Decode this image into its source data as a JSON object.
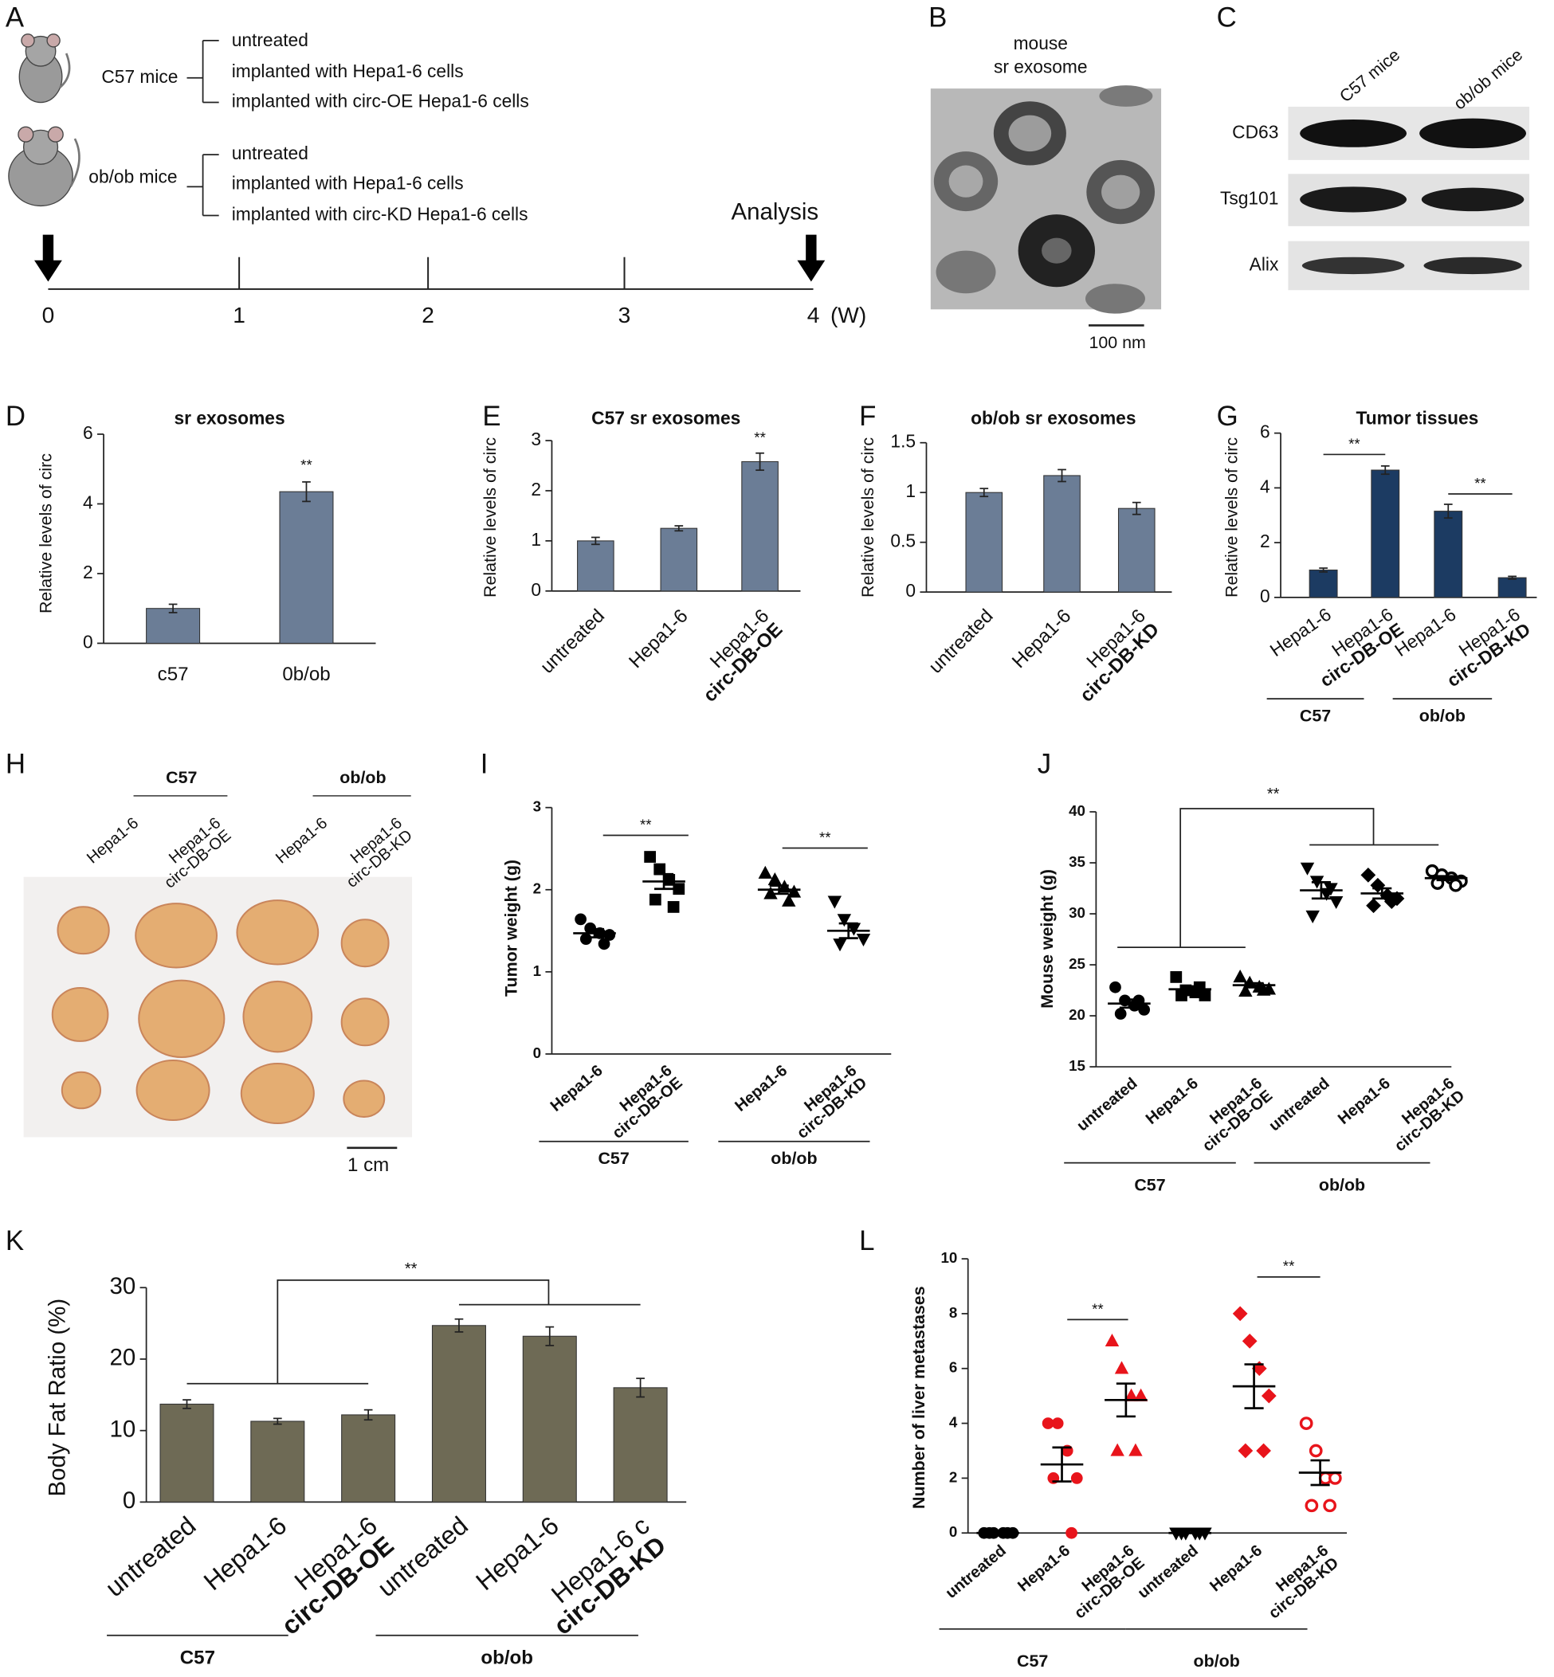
{
  "panel_a": {
    "label": "A",
    "groups": [
      {
        "name": "C57 mice",
        "items": [
          "untreated",
          "implanted with Hepa1-6 cells",
          "implanted with circ-OE Hepa1-6 cells"
        ]
      },
      {
        "name": "ob/ob mice",
        "items": [
          "untreated",
          "implanted with Hepa1-6 cells",
          "implanted with circ-KD Hepa1-6 cells"
        ]
      }
    ],
    "endpoint": "Analysis",
    "timeline": [
      0,
      1,
      2,
      3,
      4
    ],
    "unit": "(W)"
  },
  "panel_b": {
    "label": "B",
    "title": [
      "mouse",
      "sr exosome"
    ],
    "scale": "100 nm"
  },
  "panel_c": {
    "label": "C",
    "columns": [
      "C57 mice",
      "ob/ob mice"
    ],
    "rows": [
      "CD63",
      "Tsg101",
      "Alix"
    ]
  },
  "panel_h": {
    "label": "H",
    "groups": [
      "C57",
      "ob/ob"
    ],
    "samples": [
      "Hepa1-6",
      [
        "Hepa1-6",
        "circ-DB-OE"
      ],
      "Hepa1-6",
      [
        "Hepa1-6",
        "circ-DB-KD"
      ]
    ],
    "scale": "1 cm"
  },
  "chart_data": [
    {
      "type": "bar",
      "panel": "D",
      "title": "sr exosomes",
      "ylabel": "Relative levels of circ",
      "categories": [
        "c57",
        "0b/ob"
      ],
      "values": [
        1.0,
        4.35
      ],
      "errors": [
        0.12,
        0.28
      ],
      "color": "#6b7d96",
      "ylim": [
        0,
        6
      ],
      "yticks": [
        0,
        2,
        4,
        6
      ],
      "annotations": [
        "**"
      ]
    },
    {
      "type": "bar",
      "panel": "E",
      "title": "C57 sr exosomes",
      "ylabel": "Relative levels of circ",
      "categories": [
        "untreated",
        "Hepa1-6",
        [
          "Hepa1-6",
          "circ-DB-OE"
        ]
      ],
      "values": [
        1.0,
        1.25,
        2.58
      ],
      "errors": [
        0.07,
        0.05,
        0.17
      ],
      "color": "#6b7d96",
      "ylim": [
        0,
        3
      ],
      "yticks": [
        0,
        1,
        2,
        3
      ],
      "annotations": [
        "**"
      ]
    },
    {
      "type": "bar",
      "panel": "F",
      "title": "ob/ob sr exosomes",
      "ylabel": "Relative levels of circ",
      "categories": [
        "untreated",
        "Hepa1-6",
        [
          "Hepa1-6",
          "circ-DB-KD"
        ]
      ],
      "values": [
        1.0,
        1.17,
        0.84
      ],
      "errors": [
        0.04,
        0.06,
        0.06
      ],
      "color": "#6b7d96",
      "ylim": [
        0,
        1.5
      ],
      "yticks": [
        0,
        0.5,
        1,
        1.5
      ]
    },
    {
      "type": "bar",
      "panel": "G",
      "title": "Tumor tissues",
      "ylabel": "Relative levels of circ",
      "categories": [
        "Hepa1-6",
        [
          "Hepa1-6",
          "circ-DB-OE"
        ],
        "Hepa1-6",
        [
          "Hepa1-6",
          "circ-DB-KD"
        ]
      ],
      "values": [
        1.0,
        4.65,
        3.15,
        0.72
      ],
      "errors": [
        0.07,
        0.15,
        0.25,
        0.05
      ],
      "color": "#1c3b62",
      "ylim": [
        0,
        6
      ],
      "yticks": [
        0,
        2,
        4,
        6
      ],
      "groups": [
        "C57",
        "ob/ob"
      ],
      "annotations": [
        "**",
        "**"
      ]
    },
    {
      "type": "scatter",
      "panel": "I",
      "ylabel": "Tumor weight (g)",
      "categories": [
        "Hepa1-6",
        [
          "Hepa1-6",
          "circ-DB-OE"
        ],
        "Hepa1-6",
        [
          "Hepa1-6",
          "circ-DB-KD"
        ]
      ],
      "values": [
        [
          1.64,
          1.53,
          1.47,
          1.45,
          1.4,
          1.34
        ],
        [
          2.4,
          2.25,
          2.12,
          2.01,
          1.88,
          1.79
        ],
        [
          2.2,
          2.12,
          2.03,
          1.97,
          1.95,
          1.86
        ],
        [
          1.86,
          1.64,
          1.53,
          1.4,
          1.34
        ]
      ],
      "means": [
        1.47,
        2.1,
        2.0,
        1.5
      ],
      "sems": [
        0.05,
        0.09,
        0.05,
        0.09
      ],
      "markers": [
        "circle",
        "square",
        "triangle",
        "inverted-triangle"
      ],
      "colors": [
        "#000000",
        "#000000",
        "#000000",
        "#000000"
      ],
      "ylim": [
        0,
        3
      ],
      "yticks": [
        0,
        1,
        2,
        3
      ],
      "groups": [
        "C57",
        "ob/ob"
      ],
      "annotations": [
        "**",
        "**"
      ]
    },
    {
      "type": "scatter",
      "panel": "J",
      "ylabel": "Mouse weight (g)",
      "categories": [
        "untreated",
        "Hepa1-6",
        [
          "Hepa1-6",
          "circ-DB-OE"
        ],
        "untreated",
        "Hepa1-6",
        [
          "Hepa1-6",
          "circ-DB-KD"
        ]
      ],
      "values": [
        [
          22.8,
          21.5,
          21.0,
          20.6,
          20.2,
          21.5
        ],
        [
          23.8,
          22.5,
          22.3,
          22.0,
          22.0,
          22.8
        ],
        [
          23.8,
          23.2,
          22.8,
          22.6,
          22.4,
          22.5
        ],
        [
          34.5,
          33.2,
          32.0,
          31.2,
          29.8,
          32.5
        ],
        [
          33.8,
          32.8,
          31.8,
          31.5,
          30.8,
          31.2
        ],
        [
          34.2,
          33.8,
          33.5,
          33.2,
          33.0,
          32.8
        ]
      ],
      "means": [
        21.2,
        22.6,
        23.0,
        32.3,
        32.0,
        33.5
      ],
      "sems": [
        0.4,
        0.3,
        0.2,
        0.8,
        0.5,
        0.2
      ],
      "markers": [
        "circle",
        "square",
        "triangle",
        "inverted-triangle",
        "diamond",
        "open-circle"
      ],
      "colors": [
        "#000000",
        "#000000",
        "#000000",
        "#000000",
        "#000000",
        "#000000"
      ],
      "ylim": [
        15,
        40
      ],
      "yticks": [
        15,
        20,
        25,
        30,
        35,
        40
      ],
      "groups": [
        "C57",
        "ob/ob"
      ],
      "annotations": [
        "**"
      ]
    },
    {
      "type": "bar",
      "panel": "K",
      "ylabel": "Body Fat Ratio (%)",
      "categories": [
        "untreated",
        "Hepa1-6",
        [
          "Hepa1-6",
          "circ-DB-OE"
        ],
        "untreated",
        "Hepa1-6",
        [
          "Hepa1-6 c",
          "circ-DB-KD"
        ]
      ],
      "values": [
        13.7,
        11.3,
        12.2,
        24.7,
        23.2,
        16.0
      ],
      "errors": [
        0.6,
        0.4,
        0.7,
        0.9,
        1.3,
        1.3
      ],
      "color": "#6e6a55",
      "ylim": [
        0,
        30
      ],
      "yticks": [
        0,
        10,
        20,
        30
      ],
      "groups": [
        "C57",
        "ob/ob"
      ],
      "annotations": [
        "**"
      ]
    },
    {
      "type": "scatter",
      "panel": "L",
      "ylabel": "Number of liver metastases",
      "categories": [
        "untreated",
        "Hepa1-6",
        [
          "Hepa1-6",
          "circ-DB-OE"
        ],
        "untreated",
        "Hepa1-6",
        [
          "Hepa1-6",
          "circ-DB-KD"
        ]
      ],
      "values": [
        [
          0,
          0,
          0,
          0,
          0,
          0
        ],
        [
          4,
          4,
          3,
          2,
          2,
          0
        ],
        [
          7,
          6,
          5,
          5,
          3,
          3
        ],
        [
          0,
          0,
          0,
          0,
          0,
          0
        ],
        [
          8,
          7,
          6,
          5,
          3,
          3
        ],
        [
          4,
          3,
          2,
          2,
          1,
          1
        ]
      ],
      "means": [
        0,
        2.5,
        4.85,
        0,
        5.35,
        2.2
      ],
      "sems": [
        0,
        0.62,
        0.6,
        0,
        0.8,
        0.45
      ],
      "markers": [
        "circle",
        "circle",
        "triangle",
        "inverted-triangle",
        "diamond",
        "open-circle"
      ],
      "colors": [
        "#000000",
        "#e8141b",
        "#e8141b",
        "#000000",
        "#e8141b",
        "#e8141b"
      ],
      "ylim": [
        0,
        10
      ],
      "yticks": [
        0,
        2,
        4,
        6,
        8,
        10
      ],
      "groups": [
        "C57",
        "ob/ob"
      ],
      "annotations": [
        "**",
        "**"
      ]
    }
  ]
}
